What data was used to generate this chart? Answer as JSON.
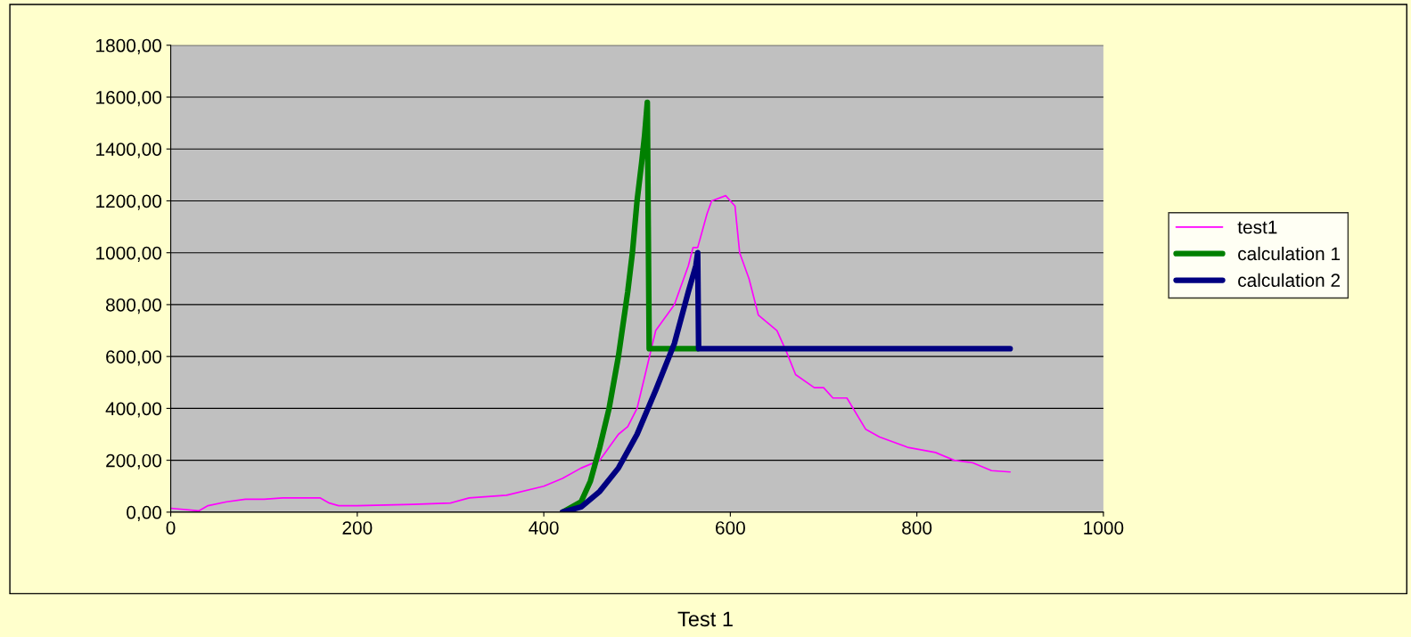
{
  "chart_data": {
    "type": "line",
    "title": "Test 1",
    "xlim": [
      0,
      1000
    ],
    "xticks": [
      0,
      200,
      400,
      600,
      800,
      1000
    ],
    "ylim": [
      0,
      1800
    ],
    "yticks": [
      {
        "value": 0,
        "label": "0,00"
      },
      {
        "value": 200,
        "label": "200,00"
      },
      {
        "value": 400,
        "label": "400,00"
      },
      {
        "value": 600,
        "label": "600,00"
      },
      {
        "value": 800,
        "label": "800,00"
      },
      {
        "value": 1000,
        "label": "1000,00"
      },
      {
        "value": 1200,
        "label": "1200,00"
      },
      {
        "value": 1400,
        "label": "1400,00"
      },
      {
        "value": 1600,
        "label": "1600,00"
      },
      {
        "value": 1800,
        "label": "1800,00"
      }
    ],
    "grid": "y",
    "legend": "right",
    "marker": "none",
    "line_style": "solid",
    "series": [
      {
        "name": "test1",
        "color": "#ff00ff",
        "x": [
          0,
          30,
          40,
          60,
          80,
          100,
          120,
          160,
          170,
          180,
          200,
          260,
          300,
          320,
          360,
          400,
          420,
          440,
          460,
          480,
          490,
          500,
          510,
          520,
          540,
          555,
          560,
          565,
          575,
          580,
          595,
          605,
          610,
          620,
          630,
          640,
          650,
          660,
          670,
          690,
          700,
          710,
          725,
          745,
          760,
          790,
          820,
          840,
          860,
          880,
          900
        ],
        "values": [
          15,
          5,
          25,
          40,
          50,
          50,
          55,
          55,
          35,
          25,
          25,
          30,
          35,
          55,
          65,
          100,
          130,
          170,
          200,
          300,
          330,
          400,
          550,
          700,
          800,
          950,
          1020,
          1020,
          1150,
          1200,
          1220,
          1180,
          1000,
          900,
          760,
          730,
          700,
          620,
          530,
          480,
          480,
          440,
          440,
          320,
          290,
          250,
          230,
          200,
          190,
          160,
          155
        ]
      },
      {
        "name": "calculation 1",
        "color": "#008000",
        "x": [
          420,
          440,
          450,
          460,
          470,
          480,
          490,
          495,
          500,
          505,
          508,
          511,
          512,
          513,
          565
        ],
        "values": [
          0,
          40,
          120,
          250,
          400,
          600,
          850,
          1000,
          1200,
          1350,
          1450,
          1580,
          1100,
          630,
          630
        ]
      },
      {
        "name": "calculation 2",
        "color": "#000080",
        "x": [
          420,
          440,
          460,
          480,
          500,
          520,
          540,
          555,
          563,
          565,
          566,
          900
        ],
        "values": [
          0,
          20,
          80,
          170,
          300,
          470,
          650,
          850,
          950,
          1000,
          630,
          630
        ]
      }
    ]
  }
}
